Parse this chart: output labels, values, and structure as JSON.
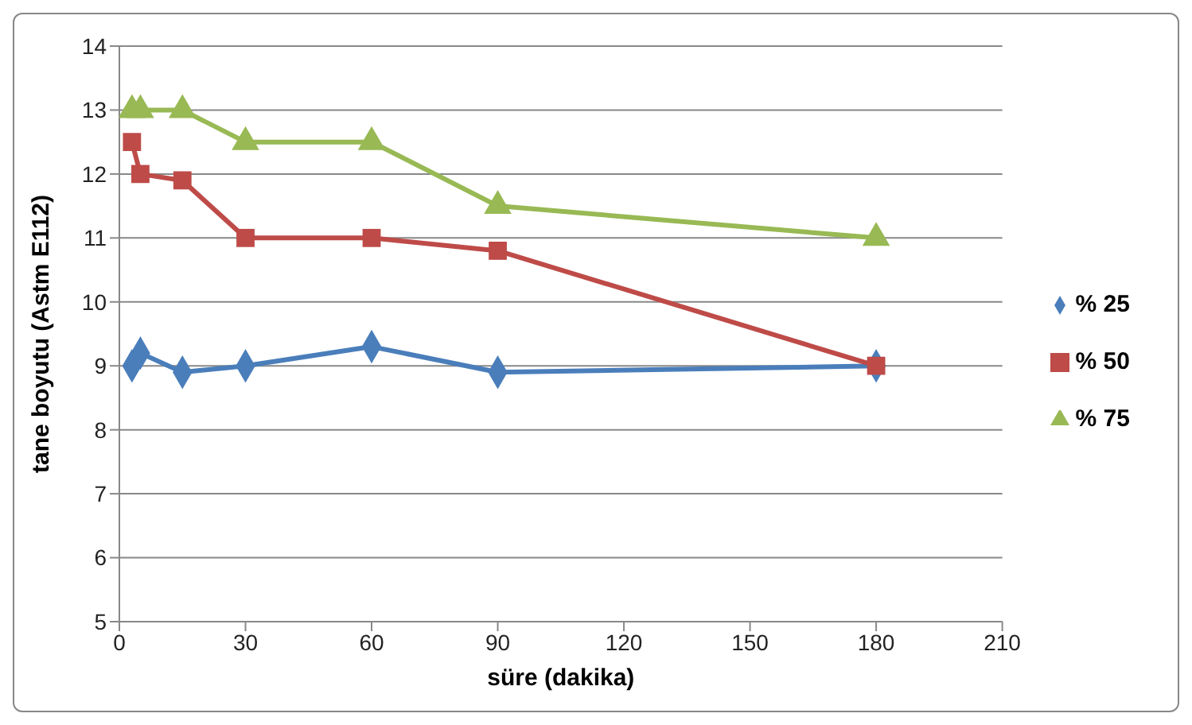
{
  "chart_data": {
    "type": "line",
    "xlabel": "süre (dakika)",
    "ylabel": "tane boyutu (Astm E112)",
    "x": [
      3,
      5,
      15,
      30,
      60,
      90,
      180
    ],
    "series": [
      {
        "name": "% 25",
        "color": "#4a7ebb",
        "marker": "diamond",
        "values": [
          9.0,
          9.2,
          8.9,
          9.0,
          9.3,
          8.9,
          9.0
        ]
      },
      {
        "name": "% 50",
        "color": "#be4b48",
        "marker": "square",
        "values": [
          12.5,
          12.0,
          11.9,
          11.0,
          11.0,
          10.8,
          9.0
        ]
      },
      {
        "name": "% 75",
        "color": "#98b954",
        "marker": "triangle",
        "values": [
          13.0,
          13.0,
          13.0,
          12.5,
          12.5,
          11.5,
          11.0
        ]
      }
    ],
    "xlim": [
      0,
      210
    ],
    "xticks": [
      0,
      30,
      60,
      90,
      120,
      150,
      180,
      210
    ],
    "ylim": [
      5,
      14
    ],
    "yticks": [
      5,
      6,
      7,
      8,
      9,
      10,
      11,
      12,
      13,
      14
    ],
    "grid": "y",
    "legend": "right",
    "line_style": "solid"
  }
}
